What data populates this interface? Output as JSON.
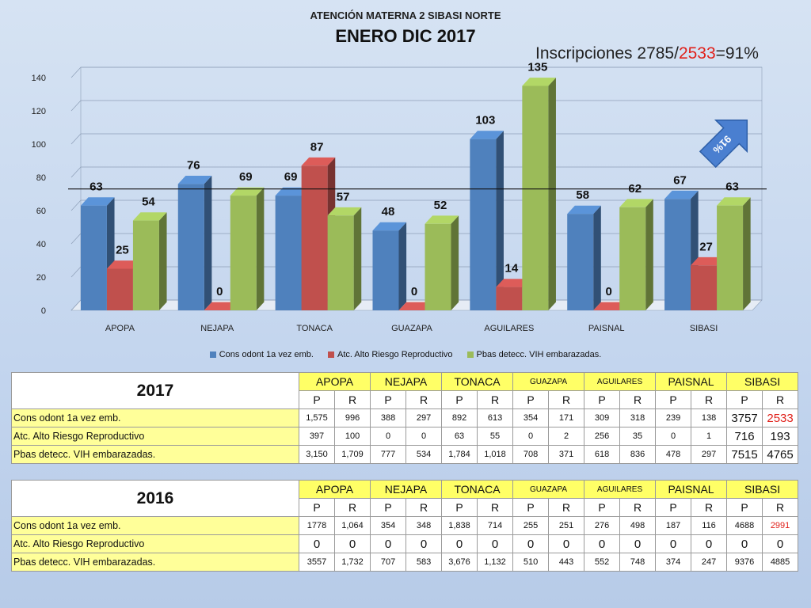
{
  "header": {
    "subtitle": "ATENCIÓN MATERNA 2 SIBASI NORTE",
    "title": "ENERO DIC 2017",
    "inscripciones_prefix": "Inscripciones 2785/",
    "inscripciones_red": "2533",
    "inscripciones_suffix": "=91%",
    "arrow_label": "91%"
  },
  "colors": {
    "series_blue": "#4f81bd",
    "series_red": "#c0504d",
    "series_green": "#9bbb59",
    "accent_red": "#e0201a",
    "row_label_yellow": "#ffff99",
    "header_yellow": "#ffff66"
  },
  "chart_data": {
    "type": "bar",
    "title": "ENERO DIC 2017",
    "subtitle": "ATENCIÓN MATERNA 2 SIBASI NORTE",
    "categories": [
      "APOPA",
      "NEJAPA",
      "TONACA",
      "GUAZAPA",
      "AGUILARES",
      "PAISNAL",
      "SIBASI"
    ],
    "series": [
      {
        "name": "Cons odont 1a vez  emb.",
        "color": "#4f81bd",
        "values": [
          63,
          76,
          69,
          48,
          103,
          58,
          67
        ]
      },
      {
        "name": "Atc. Alto Riesgo Reproductivo",
        "color": "#c0504d",
        "values": [
          25,
          0,
          87,
          0,
          14,
          0,
          27
        ]
      },
      {
        "name": "Pbas  detecc. VIH embarazadas.",
        "color": "#9bbb59",
        "values": [
          54,
          69,
          57,
          52,
          135,
          62,
          63
        ]
      }
    ],
    "ylim": [
      0,
      140
    ],
    "yticks": [
      "0",
      "20",
      "40",
      "60",
      "80",
      "100",
      "120",
      "140"
    ],
    "reference_line": 73,
    "grid": true,
    "style": "3d-clustered",
    "legend_position": "bottom"
  },
  "tables": [
    {
      "year": "2017",
      "municipalities": [
        "APOPA",
        "NEJAPA",
        "TONACA",
        "GUAZAPA",
        "AGUILARES",
        "PAISNAL",
        "SIBASI"
      ],
      "pr": [
        "P",
        "R",
        "P",
        "R",
        "P",
        "R",
        "P",
        "R",
        "P",
        "R",
        "P",
        "R",
        "P",
        "R"
      ],
      "rows": [
        {
          "label": "Cons odont 1a vez  emb.",
          "cells": [
            "1,575",
            "996",
            "388",
            "297",
            "892",
            "613",
            "354",
            "171",
            "309",
            "318",
            "239",
            "138",
            "3757",
            "2533"
          ]
        },
        {
          "label": "Atc. Alto Riesgo Reproductivo",
          "cells": [
            "397",
            "100",
            "0",
            "0",
            "63",
            "55",
            "0",
            "2",
            "256",
            "35",
            "0",
            "1",
            "716",
            "193"
          ]
        },
        {
          "label": "Pbas  detecc. VIH embarazadas.",
          "cells": [
            "3,150",
            "1,709",
            "777",
            "534",
            "1,784",
            "1,018",
            "708",
            "371",
            "618",
            "836",
            "478",
            "297",
            "7515",
            "4765"
          ]
        }
      ]
    },
    {
      "year": "2016",
      "municipalities": [
        "APOPA",
        "NEJAPA",
        "TONACA",
        "GUAZAPA",
        "AGUILARES",
        "PAISNAL",
        "SIBASI"
      ],
      "pr": [
        "P",
        "R",
        "P",
        "R",
        "P",
        "R",
        "P",
        "R",
        "P",
        "R",
        "P",
        "R",
        "P",
        "R"
      ],
      "rows": [
        {
          "label": "Cons odont 1a vez  emb.",
          "cells": [
            "1778",
            "1,064",
            "354",
            "348",
            "1,838",
            "714",
            "255",
            "251",
            "276",
            "498",
            "187",
            "116",
            "4688",
            "2991"
          ]
        },
        {
          "label": "Atc. Alto Riesgo Reproductivo",
          "cells": [
            "0",
            "0",
            "0",
            "0",
            "0",
            "0",
            "0",
            "0",
            "0",
            "0",
            "0",
            "0",
            "0",
            "0"
          ]
        },
        {
          "label": "Pbas  detecc. VIH embarazadas.",
          "cells": [
            "3557",
            "1,732",
            "707",
            "583",
            "3,676",
            "1,132",
            "510",
            "443",
            "552",
            "748",
            "374",
            "247",
            "9376",
            "4885"
          ]
        }
      ]
    }
  ]
}
